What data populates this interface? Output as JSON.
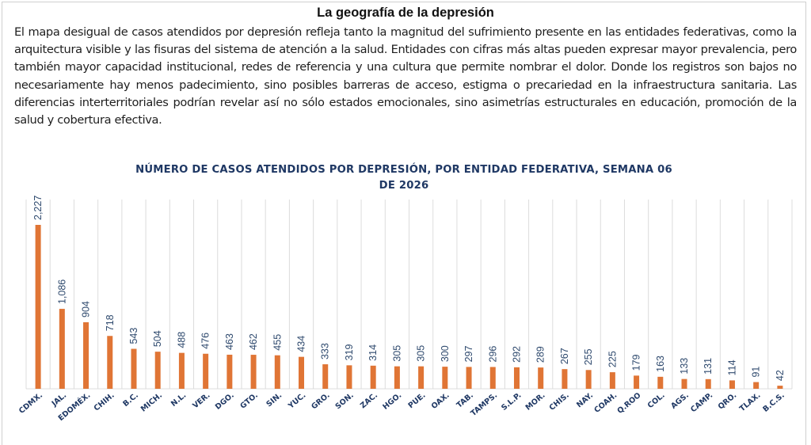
{
  "document": {
    "heading": "La geografía de la depresión",
    "paragraph": "El mapa desigual de casos atendidos por depresión refleja tanto la magnitud del sufrimiento presente en las entidades federativas, como la arquitectura visible y las fisuras del sistema de atención a la salud. Entidades con cifras más altas pueden expresar mayor prevalencia, pero también mayor capacidad institucional, redes de referencia y una cultura que permite nombrar el dolor. Donde los registros son bajos no necesariamente hay menos padecimiento, sino posibles barreras de acceso, estigma o precariedad en la infraestructura sanitaria. Las diferencias interterritoriales podrían revelar así no sólo estados emocionales, sino asimetrías estructurales en educación, promoción de la salud y cobertura efectiva."
  },
  "colors": {
    "bar": "#e07535",
    "title": "#1f3864",
    "label": "#1f3864",
    "value_label": "#2f4a6e",
    "grid": "#dcdcdc"
  },
  "chart_data": {
    "type": "bar",
    "title_line1": "NÚMERO DE CASOS ATENDIDOS POR DEPRESIÓN, POR ENTIDAD FEDERATIVA, SEMANA 06",
    "title_line2": "DE 2026",
    "xlabel": "",
    "ylabel": "",
    "ylim": [
      0,
      2227
    ],
    "grid": "vertical category separators",
    "legend": "none",
    "categories": [
      "CDMX.",
      "JAL.",
      "EDOMÉX.",
      "CHIH.",
      "B.C.",
      "MICH.",
      "N.L.",
      "VER.",
      "DGO.",
      "GTO.",
      "SIN.",
      "YUC.",
      "GRO.",
      "SON.",
      "ZAC.",
      "HGO.",
      "PUE.",
      "OAX.",
      "TAB.",
      "TAMPS.",
      "S.L.P.",
      "MOR.",
      "CHIS.",
      "NAY.",
      "COAH.",
      "Q.ROO",
      "COL.",
      "AGS.",
      "CAMP.",
      "QRO.",
      "TLAX.",
      "B.C.S."
    ],
    "values": [
      2227,
      1086,
      904,
      718,
      543,
      504,
      488,
      476,
      463,
      462,
      455,
      434,
      333,
      319,
      314,
      305,
      305,
      300,
      297,
      296,
      292,
      289,
      267,
      255,
      225,
      179,
      163,
      133,
      131,
      114,
      91,
      42
    ],
    "value_labels": [
      "2,227",
      "1,086",
      "904",
      "718",
      "543",
      "504",
      "488",
      "476",
      "463",
      "462",
      "455",
      "434",
      "333",
      "319",
      "314",
      "305",
      "305",
      "300",
      "297",
      "296",
      "292",
      "289",
      "267",
      "255",
      "225",
      "179",
      "163",
      "133",
      "131",
      "114",
      "91",
      "42"
    ]
  }
}
